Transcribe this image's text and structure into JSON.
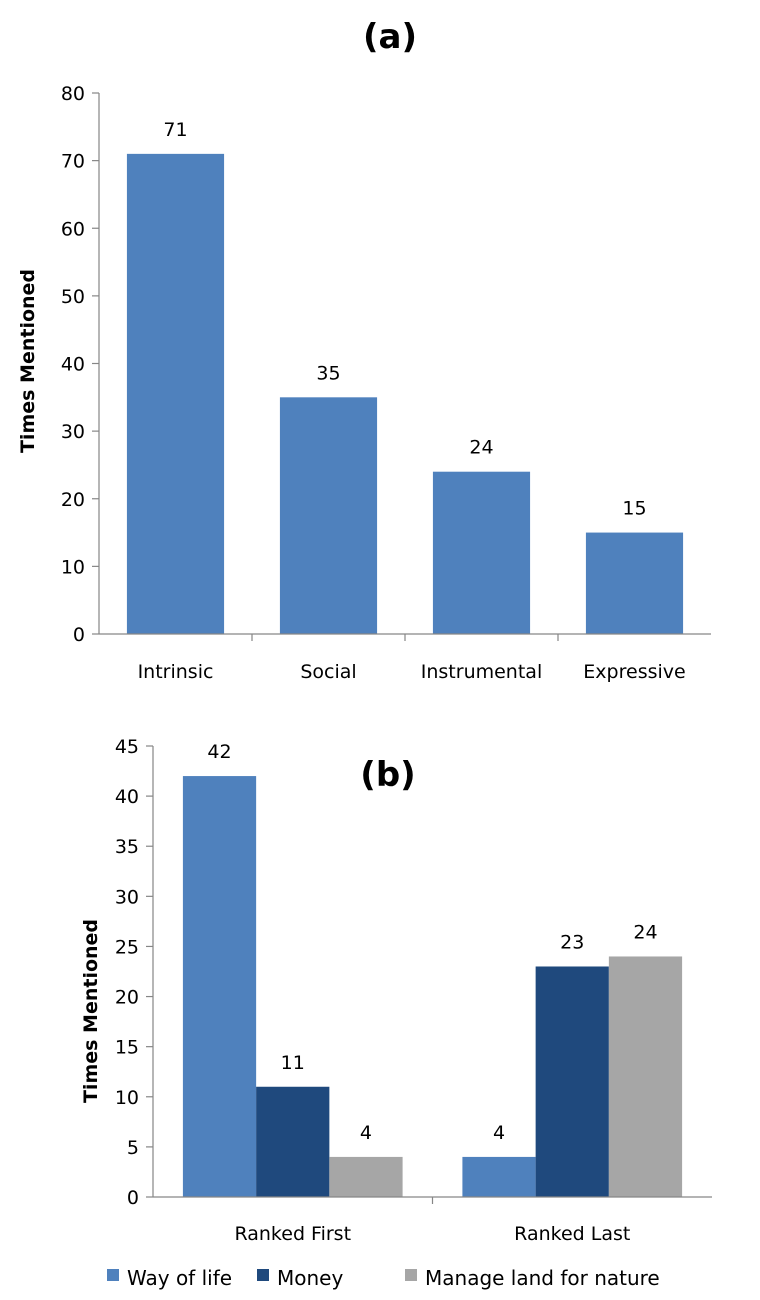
{
  "chart_data": [
    {
      "type": "bar",
      "title": "(a)",
      "xlabel": "",
      "ylabel": "Times Mentioned",
      "ylim": [
        0,
        80
      ],
      "yticks": [
        0,
        10,
        20,
        30,
        40,
        50,
        60,
        70,
        80
      ],
      "categories": [
        "Intrinsic",
        "Social",
        "Instrumental",
        "Expressive"
      ],
      "values": [
        71,
        35,
        24,
        15
      ],
      "color": "#4f81bd",
      "data_labels": true,
      "grid": false
    },
    {
      "type": "bar",
      "title": "(b)",
      "xlabel": "",
      "ylabel": "Times Mentioned",
      "ylim": [
        0,
        45
      ],
      "yticks": [
        0,
        5,
        10,
        15,
        20,
        25,
        30,
        35,
        40,
        45
      ],
      "categories": [
        "Ranked First",
        "Ranked Last"
      ],
      "series": [
        {
          "name": "Way of life",
          "values": [
            42,
            4
          ],
          "color": "#4f81bd"
        },
        {
          "name": "Money",
          "values": [
            11,
            23
          ],
          "color": "#1f497d"
        },
        {
          "name": "Manage land for nature",
          "values": [
            4,
            24
          ],
          "color": "#a6a6a6"
        }
      ],
      "data_labels": true,
      "grid": false,
      "legend": "bottom"
    }
  ]
}
